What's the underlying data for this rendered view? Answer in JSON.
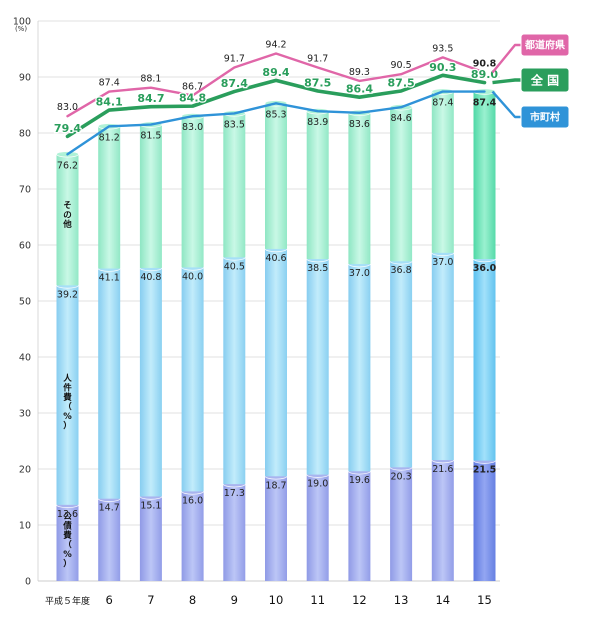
{
  "chart_data": {
    "type": "bar",
    "stacking": "stacked",
    "y_axis": {
      "min": 0,
      "max": 100,
      "step": 10,
      "unit_label": "(%)"
    },
    "categories": [
      "平成５年度",
      "6",
      "7",
      "8",
      "9",
      "10",
      "11",
      "12",
      "13",
      "14",
      "15"
    ],
    "stack_series": [
      {
        "name": "公債費（%）",
        "color": "#a9b4ef",
        "values": [
          13.6,
          14.7,
          15.1,
          16.0,
          17.3,
          18.7,
          19.0,
          19.6,
          20.3,
          21.6,
          21.5
        ]
      },
      {
        "name": "人件費（%）",
        "color": "#a5dff7",
        "values": [
          39.2,
          41.1,
          40.8,
          40.0,
          40.5,
          40.6,
          38.5,
          37.0,
          36.8,
          37.0,
          36.0
        ]
      },
      {
        "name": "その他",
        "color": "#aef2d6",
        "values": [
          23.4,
          25.4,
          25.6,
          27.0,
          25.7,
          26.0,
          26.4,
          27.0,
          27.5,
          28.8,
          29.9
        ]
      }
    ],
    "stack_labels": {
      "kousaihi": [
        "13.6",
        "14.7",
        "15.1",
        "16.0",
        "17.3",
        "18.7",
        "19.0",
        "19.6",
        "20.3",
        "21.6",
        "21.5"
      ],
      "jinkenhi": [
        "39.2",
        "41.1",
        "40.8",
        "40.0",
        "40.5",
        "40.6",
        "38.5",
        "37.0",
        "36.8",
        "37.0",
        "36.0"
      ]
    },
    "line_series": [
      {
        "name": "都道府県",
        "color": "#e066a8",
        "values": [
          83.0,
          87.4,
          88.1,
          86.7,
          91.7,
          94.2,
          91.7,
          89.3,
          90.5,
          93.5,
          90.8
        ]
      },
      {
        "name": "全 国",
        "color": "#2a9e5c",
        "values": [
          79.4,
          84.1,
          84.7,
          84.8,
          87.4,
          89.4,
          87.5,
          86.4,
          87.5,
          90.3,
          89.0
        ]
      },
      {
        "name": "市町村",
        "color": "#2f93d8",
        "values": [
          76.2,
          81.2,
          81.5,
          83.0,
          83.5,
          85.3,
          83.9,
          83.6,
          84.6,
          87.4,
          87.4
        ]
      }
    ],
    "line_labels": {
      "todofuken": [
        "83.0",
        "87.4",
        "88.1",
        "86.7",
        "91.7",
        "94.2",
        "91.7",
        "89.3",
        "90.5",
        "93.5",
        "90.8"
      ],
      "zenkoku": [
        "79.4",
        "84.1",
        "84.7",
        "84.8",
        "87.4",
        "89.4",
        "87.5",
        "86.4",
        "87.5",
        "90.3",
        "89.0"
      ],
      "shichoson": [
        "76.2",
        "81.2",
        "81.5",
        "83.0",
        "83.5",
        "85.3",
        "83.9",
        "83.6",
        "84.6",
        "87.4",
        "87.4"
      ]
    },
    "legend_callouts": [
      "都道府県",
      "全 国",
      "市町村"
    ],
    "grid": true
  }
}
